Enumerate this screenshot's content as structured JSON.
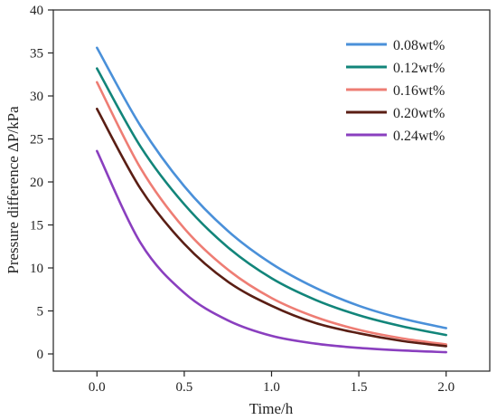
{
  "chart_data": {
    "type": "line",
    "xlabel": "Time/h",
    "ylabel": "Pressure difference ΔP/kPa",
    "xlim": [
      -0.25,
      2.25
    ],
    "ylim": [
      -2,
      40
    ],
    "xticks": [
      0.0,
      0.5,
      1.0,
      1.5,
      2.0
    ],
    "xtick_labels": [
      "0.0",
      "0.5",
      "1.0",
      "1.5",
      "2.0"
    ],
    "yticks": [
      0,
      5,
      10,
      15,
      20,
      25,
      30,
      35,
      40
    ],
    "ytick_labels": [
      "0",
      "5",
      "10",
      "15",
      "20",
      "25",
      "30",
      "35",
      "40"
    ],
    "grid": false,
    "legend_position": "top-right",
    "x": [
      0.0,
      0.25,
      0.5,
      0.75,
      1.0,
      1.25,
      1.5,
      1.75,
      2.0
    ],
    "series": [
      {
        "name": "0.08wt%",
        "color": "#4a90d9",
        "values": [
          35.6,
          26.5,
          19.5,
          14.3,
          10.5,
          7.7,
          5.6,
          4.1,
          3.0
        ]
      },
      {
        "name": "0.12wt%",
        "color": "#12857a",
        "values": [
          33.2,
          24.1,
          17.4,
          12.4,
          8.8,
          6.3,
          4.5,
          3.2,
          2.2
        ]
      },
      {
        "name": "0.16wt%",
        "color": "#ee7d74",
        "values": [
          31.6,
          21.6,
          14.6,
          9.8,
          6.5,
          4.3,
          2.8,
          1.8,
          1.1
        ]
      },
      {
        "name": "0.20wt%",
        "color": "#5a1e14",
        "values": [
          28.5,
          19.2,
          12.8,
          8.4,
          5.6,
          3.6,
          2.4,
          1.5,
          0.9
        ]
      },
      {
        "name": "0.24wt%",
        "color": "#8a3fbf",
        "values": [
          23.6,
          12.9,
          7.1,
          3.9,
          2.1,
          1.2,
          0.7,
          0.4,
          0.2
        ]
      }
    ]
  }
}
